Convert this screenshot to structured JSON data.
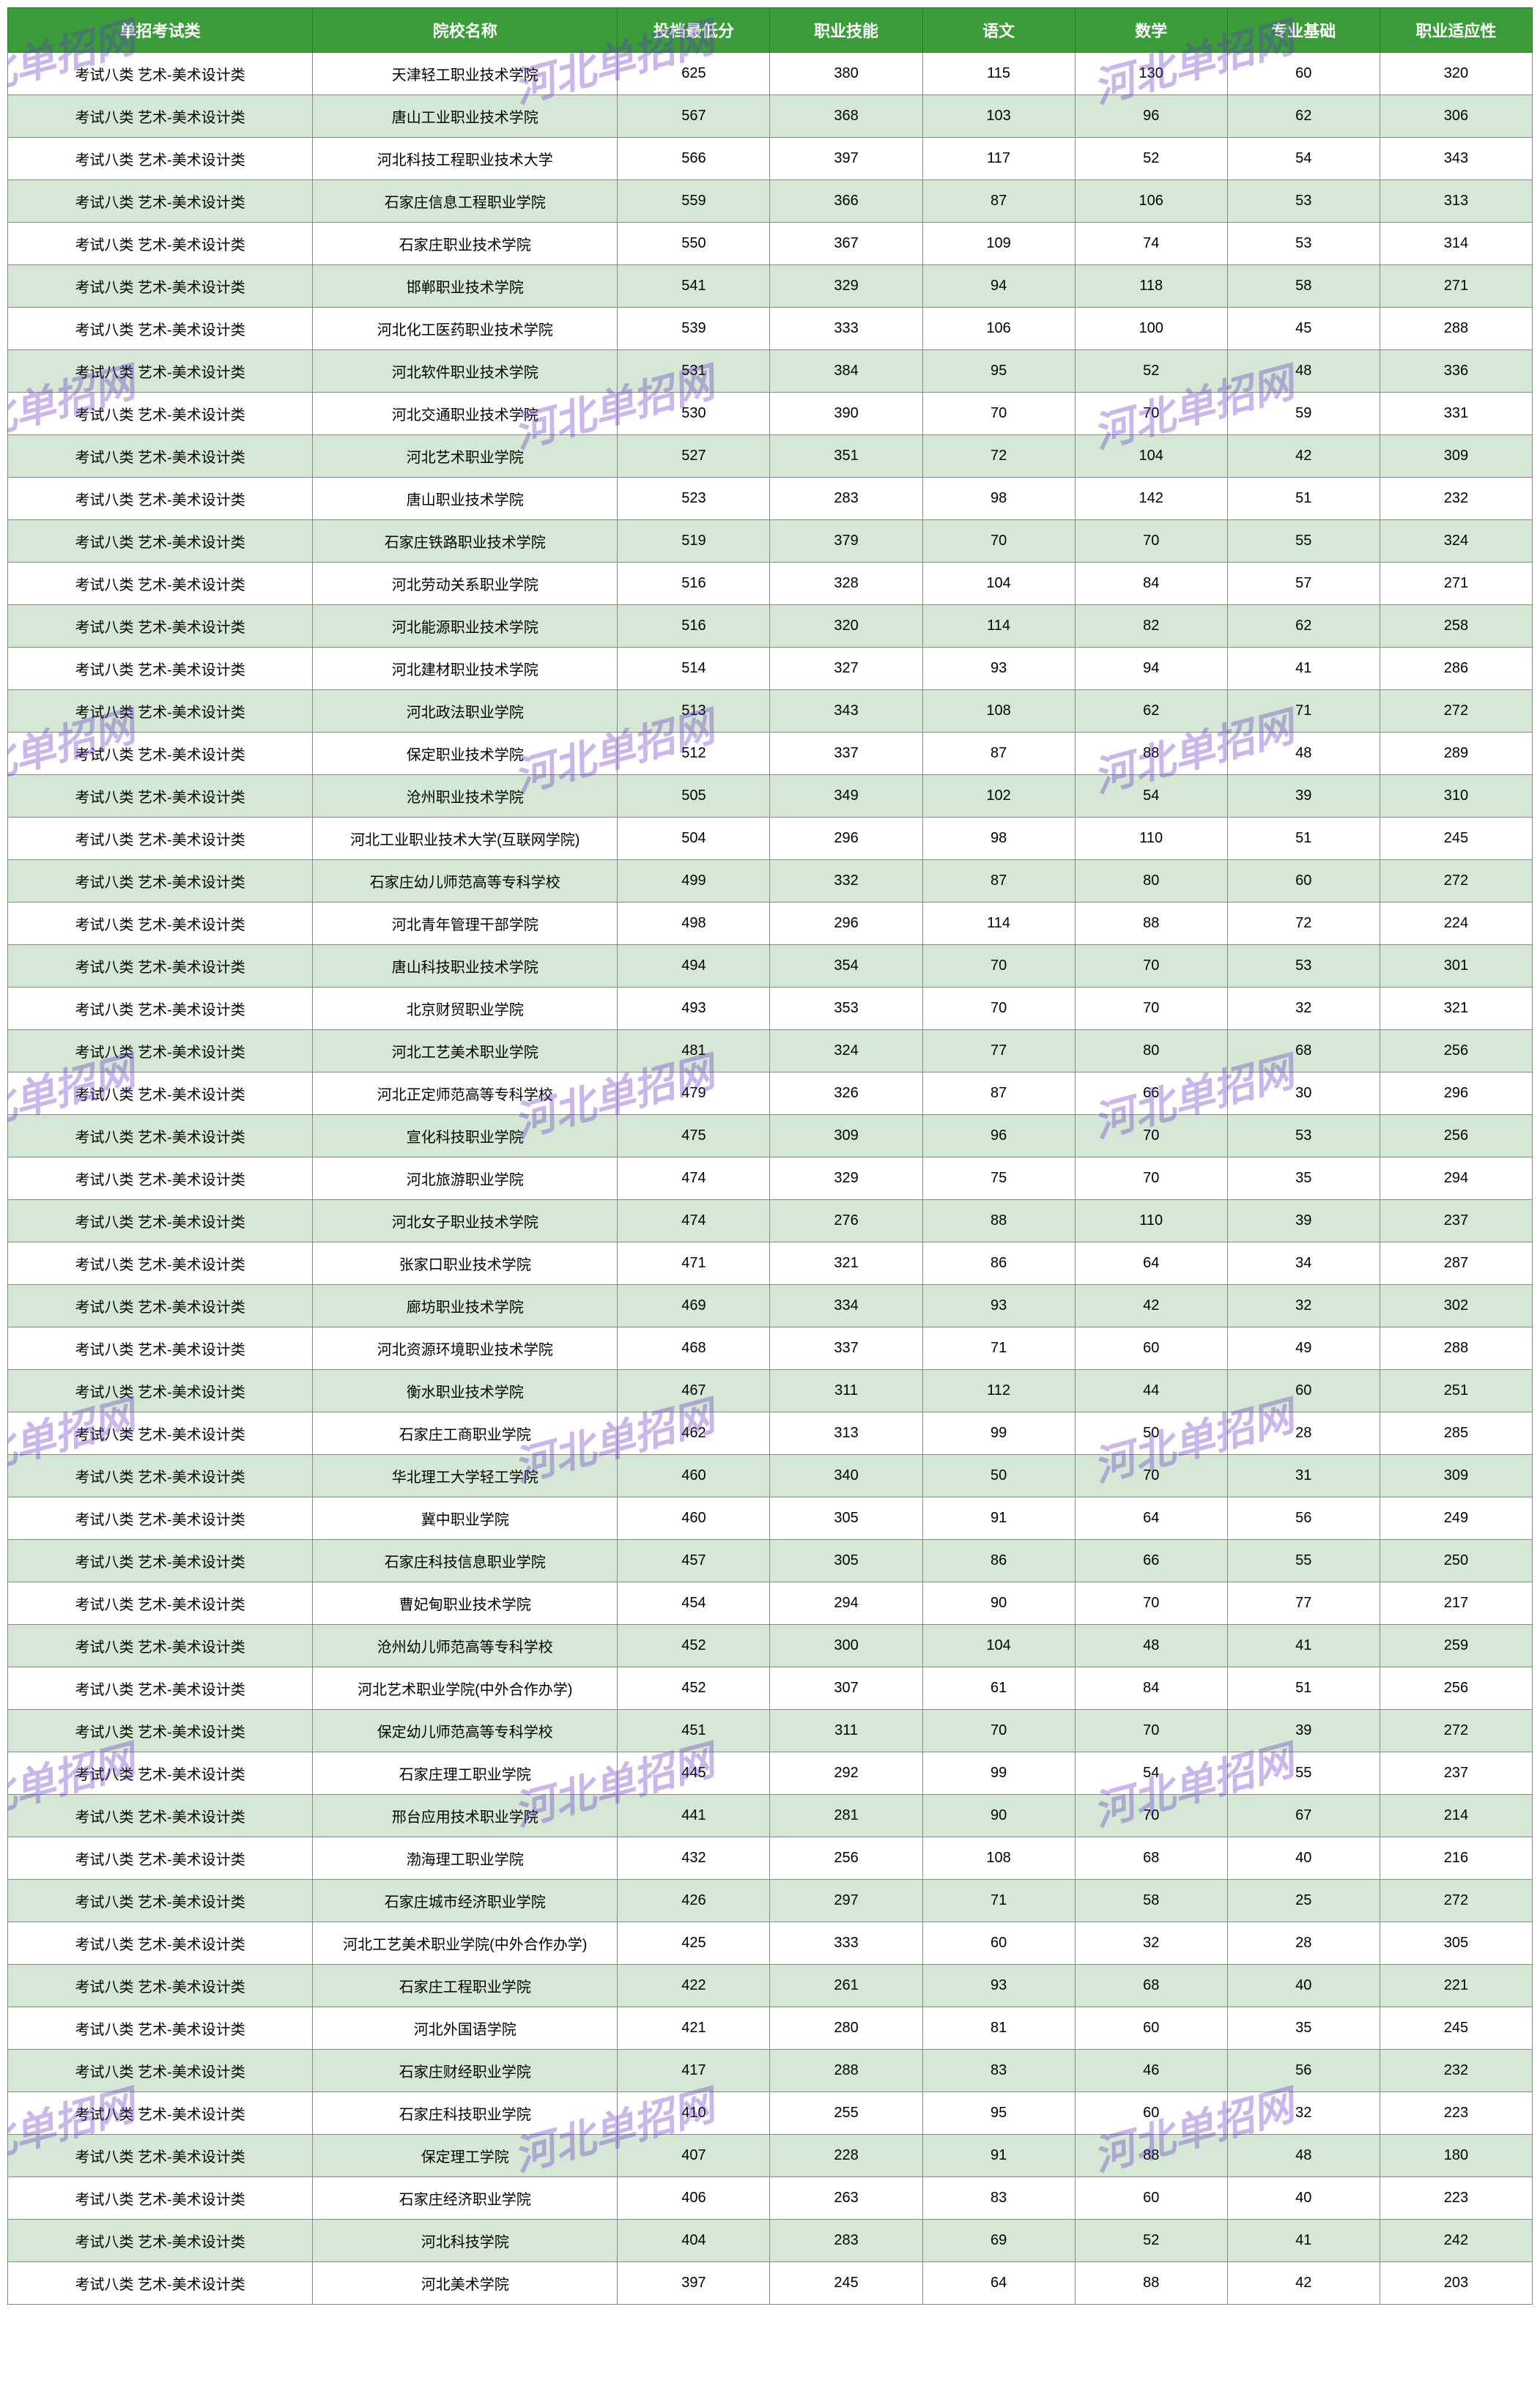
{
  "watermark_text": "河北单招网",
  "table": {
    "header_bg": "#3a9d3a",
    "header_color": "#ffffff",
    "row_odd_bg": "#ffffff",
    "row_even_bg": "#d5e8d5",
    "border_color": "#888888",
    "columns": [
      "单招考试类",
      "院校名称",
      "投档最低分",
      "职业技能",
      "语文",
      "数学",
      "专业基础",
      "职业适应性"
    ],
    "rows": [
      [
        "考试八类 艺术-美术设计类",
        "天津轻工职业技术学院",
        "625",
        "380",
        "115",
        "130",
        "60",
        "320"
      ],
      [
        "考试八类 艺术-美术设计类",
        "唐山工业职业技术学院",
        "567",
        "368",
        "103",
        "96",
        "62",
        "306"
      ],
      [
        "考试八类 艺术-美术设计类",
        "河北科技工程职业技术大学",
        "566",
        "397",
        "117",
        "52",
        "54",
        "343"
      ],
      [
        "考试八类 艺术-美术设计类",
        "石家庄信息工程职业学院",
        "559",
        "366",
        "87",
        "106",
        "53",
        "313"
      ],
      [
        "考试八类 艺术-美术设计类",
        "石家庄职业技术学院",
        "550",
        "367",
        "109",
        "74",
        "53",
        "314"
      ],
      [
        "考试八类 艺术-美术设计类",
        "邯郸职业技术学院",
        "541",
        "329",
        "94",
        "118",
        "58",
        "271"
      ],
      [
        "考试八类 艺术-美术设计类",
        "河北化工医药职业技术学院",
        "539",
        "333",
        "106",
        "100",
        "45",
        "288"
      ],
      [
        "考试八类 艺术-美术设计类",
        "河北软件职业技术学院",
        "531",
        "384",
        "95",
        "52",
        "48",
        "336"
      ],
      [
        "考试八类 艺术-美术设计类",
        "河北交通职业技术学院",
        "530",
        "390",
        "70",
        "70",
        "59",
        "331"
      ],
      [
        "考试八类 艺术-美术设计类",
        "河北艺术职业学院",
        "527",
        "351",
        "72",
        "104",
        "42",
        "309"
      ],
      [
        "考试八类 艺术-美术设计类",
        "唐山职业技术学院",
        "523",
        "283",
        "98",
        "142",
        "51",
        "232"
      ],
      [
        "考试八类 艺术-美术设计类",
        "石家庄铁路职业技术学院",
        "519",
        "379",
        "70",
        "70",
        "55",
        "324"
      ],
      [
        "考试八类 艺术-美术设计类",
        "河北劳动关系职业学院",
        "516",
        "328",
        "104",
        "84",
        "57",
        "271"
      ],
      [
        "考试八类 艺术-美术设计类",
        "河北能源职业技术学院",
        "516",
        "320",
        "114",
        "82",
        "62",
        "258"
      ],
      [
        "考试八类 艺术-美术设计类",
        "河北建材职业技术学院",
        "514",
        "327",
        "93",
        "94",
        "41",
        "286"
      ],
      [
        "考试八类 艺术-美术设计类",
        "河北政法职业学院",
        "513",
        "343",
        "108",
        "62",
        "71",
        "272"
      ],
      [
        "考试八类 艺术-美术设计类",
        "保定职业技术学院",
        "512",
        "337",
        "87",
        "88",
        "48",
        "289"
      ],
      [
        "考试八类 艺术-美术设计类",
        "沧州职业技术学院",
        "505",
        "349",
        "102",
        "54",
        "39",
        "310"
      ],
      [
        "考试八类 艺术-美术设计类",
        "河北工业职业技术大学(互联网学院)",
        "504",
        "296",
        "98",
        "110",
        "51",
        "245"
      ],
      [
        "考试八类 艺术-美术设计类",
        "石家庄幼儿师范高等专科学校",
        "499",
        "332",
        "87",
        "80",
        "60",
        "272"
      ],
      [
        "考试八类 艺术-美术设计类",
        "河北青年管理干部学院",
        "498",
        "296",
        "114",
        "88",
        "72",
        "224"
      ],
      [
        "考试八类 艺术-美术设计类",
        "唐山科技职业技术学院",
        "494",
        "354",
        "70",
        "70",
        "53",
        "301"
      ],
      [
        "考试八类 艺术-美术设计类",
        "北京财贸职业学院",
        "493",
        "353",
        "70",
        "70",
        "32",
        "321"
      ],
      [
        "考试八类 艺术-美术设计类",
        "河北工艺美术职业学院",
        "481",
        "324",
        "77",
        "80",
        "68",
        "256"
      ],
      [
        "考试八类 艺术-美术设计类",
        "河北正定师范高等专科学校",
        "479",
        "326",
        "87",
        "66",
        "30",
        "296"
      ],
      [
        "考试八类 艺术-美术设计类",
        "宣化科技职业学院",
        "475",
        "309",
        "96",
        "70",
        "53",
        "256"
      ],
      [
        "考试八类 艺术-美术设计类",
        "河北旅游职业学院",
        "474",
        "329",
        "75",
        "70",
        "35",
        "294"
      ],
      [
        "考试八类 艺术-美术设计类",
        "河北女子职业技术学院",
        "474",
        "276",
        "88",
        "110",
        "39",
        "237"
      ],
      [
        "考试八类 艺术-美术设计类",
        "张家口职业技术学院",
        "471",
        "321",
        "86",
        "64",
        "34",
        "287"
      ],
      [
        "考试八类 艺术-美术设计类",
        "廊坊职业技术学院",
        "469",
        "334",
        "93",
        "42",
        "32",
        "302"
      ],
      [
        "考试八类 艺术-美术设计类",
        "河北资源环境职业技术学院",
        "468",
        "337",
        "71",
        "60",
        "49",
        "288"
      ],
      [
        "考试八类 艺术-美术设计类",
        "衡水职业技术学院",
        "467",
        "311",
        "112",
        "44",
        "60",
        "251"
      ],
      [
        "考试八类 艺术-美术设计类",
        "石家庄工商职业学院",
        "462",
        "313",
        "99",
        "50",
        "28",
        "285"
      ],
      [
        "考试八类 艺术-美术设计类",
        "华北理工大学轻工学院",
        "460",
        "340",
        "50",
        "70",
        "31",
        "309"
      ],
      [
        "考试八类 艺术-美术设计类",
        "冀中职业学院",
        "460",
        "305",
        "91",
        "64",
        "56",
        "249"
      ],
      [
        "考试八类 艺术-美术设计类",
        "石家庄科技信息职业学院",
        "457",
        "305",
        "86",
        "66",
        "55",
        "250"
      ],
      [
        "考试八类 艺术-美术设计类",
        "曹妃甸职业技术学院",
        "454",
        "294",
        "90",
        "70",
        "77",
        "217"
      ],
      [
        "考试八类 艺术-美术设计类",
        "沧州幼儿师范高等专科学校",
        "452",
        "300",
        "104",
        "48",
        "41",
        "259"
      ],
      [
        "考试八类 艺术-美术设计类",
        "河北艺术职业学院(中外合作办学)",
        "452",
        "307",
        "61",
        "84",
        "51",
        "256"
      ],
      [
        "考试八类 艺术-美术设计类",
        "保定幼儿师范高等专科学校",
        "451",
        "311",
        "70",
        "70",
        "39",
        "272"
      ],
      [
        "考试八类 艺术-美术设计类",
        "石家庄理工职业学院",
        "445",
        "292",
        "99",
        "54",
        "55",
        "237"
      ],
      [
        "考试八类 艺术-美术设计类",
        "邢台应用技术职业学院",
        "441",
        "281",
        "90",
        "70",
        "67",
        "214"
      ],
      [
        "考试八类 艺术-美术设计类",
        "渤海理工职业学院",
        "432",
        "256",
        "108",
        "68",
        "40",
        "216"
      ],
      [
        "考试八类 艺术-美术设计类",
        "石家庄城市经济职业学院",
        "426",
        "297",
        "71",
        "58",
        "25",
        "272"
      ],
      [
        "考试八类 艺术-美术设计类",
        "河北工艺美术职业学院(中外合作办学)",
        "425",
        "333",
        "60",
        "32",
        "28",
        "305"
      ],
      [
        "考试八类 艺术-美术设计类",
        "石家庄工程职业学院",
        "422",
        "261",
        "93",
        "68",
        "40",
        "221"
      ],
      [
        "考试八类 艺术-美术设计类",
        "河北外国语学院",
        "421",
        "280",
        "81",
        "60",
        "35",
        "245"
      ],
      [
        "考试八类 艺术-美术设计类",
        "石家庄财经职业学院",
        "417",
        "288",
        "83",
        "46",
        "56",
        "232"
      ],
      [
        "考试八类 艺术-美术设计类",
        "石家庄科技职业学院",
        "410",
        "255",
        "95",
        "60",
        "32",
        "223"
      ],
      [
        "考试八类 艺术-美术设计类",
        "保定理工学院",
        "407",
        "228",
        "91",
        "88",
        "48",
        "180"
      ],
      [
        "考试八类 艺术-美术设计类",
        "石家庄经济职业学院",
        "406",
        "263",
        "83",
        "60",
        "40",
        "223"
      ],
      [
        "考试八类 艺术-美术设计类",
        "河北科技学院",
        "404",
        "283",
        "69",
        "52",
        "41",
        "242"
      ],
      [
        "考试八类 艺术-美术设计类",
        "河北美术学院",
        "397",
        "245",
        "64",
        "88",
        "42",
        "203"
      ]
    ]
  }
}
